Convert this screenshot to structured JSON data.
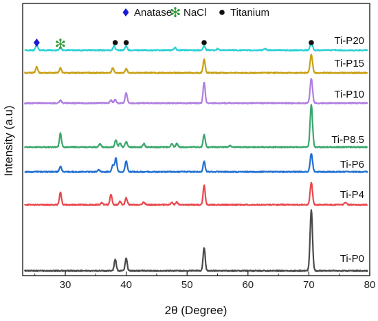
{
  "chart_data": {
    "type": "line",
    "title": "",
    "xlabel": "2θ (Degree)",
    "ylabel": "Intensity (a.u)",
    "xlim": [
      23,
      80
    ],
    "xticks": [
      30,
      40,
      50,
      60,
      70,
      80
    ],
    "yticks_shown": false,
    "grid": false,
    "legend_position": "top-center",
    "legend": [
      {
        "label": "Anatase",
        "marker": "diamond",
        "color": "#1a1ad6"
      },
      {
        "label": "NaCl",
        "marker": "asterisk",
        "color": "#2e9a3a"
      },
      {
        "label": "Titanium",
        "marker": "dot",
        "color": "#111111"
      }
    ],
    "series": [
      {
        "name": "Ti-P0",
        "color": "#4a4a4a",
        "baseline": 0,
        "peaks": [
          [
            38.2,
            17
          ],
          [
            40.0,
            18
          ],
          [
            52.8,
            34
          ],
          [
            70.4,
            88
          ]
        ],
        "markers": []
      },
      {
        "name": "Ti-P4",
        "color": "#e8484e",
        "baseline": 1,
        "peaks": [
          [
            29.2,
            18
          ],
          [
            36.0,
            3
          ],
          [
            37.5,
            15
          ],
          [
            39.0,
            5
          ],
          [
            40.0,
            10
          ],
          [
            42.9,
            4
          ],
          [
            47.5,
            4
          ],
          [
            48.3,
            4
          ],
          [
            52.8,
            28
          ],
          [
            70.4,
            32
          ],
          [
            76.0,
            3
          ]
        ],
        "markers": []
      },
      {
        "name": "Ti-P6",
        "color": "#1f6fd1",
        "baseline": 2,
        "peaks": [
          [
            29.2,
            8
          ],
          [
            35.5,
            3
          ],
          [
            37.8,
            10
          ],
          [
            38.3,
            20
          ],
          [
            40.0,
            16
          ],
          [
            52.8,
            15
          ],
          [
            70.4,
            26
          ]
        ],
        "markers": []
      },
      {
        "name": "Ti-P8.5",
        "color": "#3aa76d",
        "baseline": 3,
        "peaks": [
          [
            29.2,
            20
          ],
          [
            35.7,
            5
          ],
          [
            38.3,
            10
          ],
          [
            39.0,
            6
          ],
          [
            40.0,
            8
          ],
          [
            42.9,
            5
          ],
          [
            47.5,
            5
          ],
          [
            48.3,
            5
          ],
          [
            52.8,
            18
          ],
          [
            57.0,
            2
          ],
          [
            70.4,
            62
          ]
        ],
        "markers": []
      },
      {
        "name": "Ti-P10",
        "color": "#b07ee0",
        "baseline": 4,
        "peaks": [
          [
            29.2,
            4
          ],
          [
            37.5,
            4
          ],
          [
            38.2,
            5
          ],
          [
            40.0,
            15
          ],
          [
            52.8,
            30
          ],
          [
            70.4,
            36
          ]
        ],
        "markers": []
      },
      {
        "name": "Ti-P15",
        "color": "#c9a013",
        "baseline": 5,
        "peaks": [
          [
            25.3,
            9
          ],
          [
            29.2,
            7
          ],
          [
            37.8,
            7
          ],
          [
            40.0,
            6
          ],
          [
            52.8,
            20
          ],
          [
            70.4,
            26
          ]
        ],
        "markers": []
      },
      {
        "name": "Ti-P20",
        "color": "#29d0d4",
        "baseline": 6,
        "peaks": [
          [
            25.3,
            8
          ],
          [
            29.2,
            4
          ],
          [
            38.0,
            6
          ],
          [
            40.0,
            6
          ],
          [
            48.0,
            4
          ],
          [
            52.8,
            6
          ],
          [
            55.0,
            2
          ],
          [
            62.8,
            2
          ],
          [
            70.4,
            12
          ]
        ],
        "markers": [
          {
            "symbol": "diamond",
            "x": 25.3
          },
          {
            "symbol": "asterisk",
            "x": 29.2
          },
          {
            "symbol": "dot",
            "x": 38.2
          },
          {
            "symbol": "dot",
            "x": 40.0
          },
          {
            "symbol": "dot",
            "x": 52.8
          },
          {
            "symbol": "dot",
            "x": 70.4
          }
        ]
      }
    ]
  }
}
